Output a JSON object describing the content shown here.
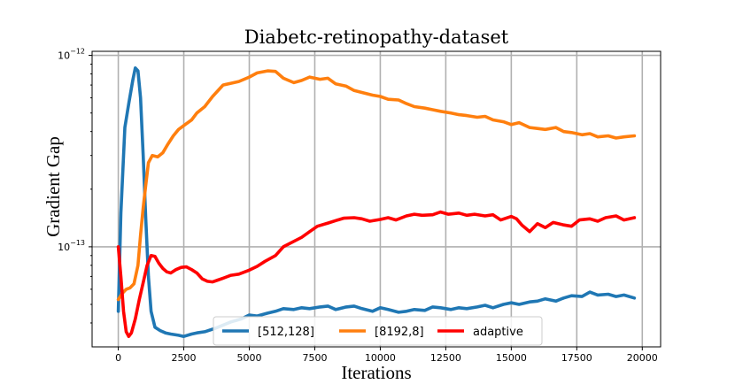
{
  "chart_data": {
    "type": "line",
    "title": "Diabetc-retinopathy-dataset",
    "xlabel": "Iterations",
    "ylabel": "Gradient Gap",
    "xlim": [
      -1000,
      20700
    ],
    "ylim": [
      3e-14,
      1.05e-12
    ],
    "yscale": "log",
    "grid": true,
    "xticks": [
      0,
      2500,
      5000,
      7500,
      10000,
      12500,
      15000,
      17500,
      20000
    ],
    "xtick_labels": [
      "0",
      "2500",
      "5000",
      "7500",
      "10000",
      "12500",
      "15000",
      "17500",
      "20000"
    ],
    "yticks": [
      {
        "value": 1e-13,
        "base": "10",
        "exp": "−13"
      },
      {
        "value": 1e-12,
        "base": "10",
        "exp": "−12"
      }
    ],
    "legend_position": "lower-center",
    "series": [
      {
        "name": "[512,128]",
        "color": "#1f77b4",
        "x": [
          0,
          100,
          250,
          400,
          550,
          650,
          750,
          850,
          950,
          1050,
          1150,
          1250,
          1400,
          1600,
          1800,
          2000,
          2300,
          2500,
          2800,
          3000,
          3300,
          3700,
          4000,
          4300,
          4700,
          5000,
          5300,
          5700,
          6000,
          6300,
          6700,
          7000,
          7300,
          7700,
          8000,
          8300,
          8700,
          9000,
          9300,
          9700,
          10000,
          10300,
          10700,
          11000,
          11300,
          11700,
          12000,
          12300,
          12700,
          13000,
          13300,
          13700,
          14000,
          14300,
          14700,
          15000,
          15300,
          15700,
          16000,
          16300,
          16700,
          17000,
          17300,
          17700,
          18000,
          18300,
          18700,
          19000,
          19300,
          19700
        ],
        "values": [
          4.6e-14,
          1.5e-13,
          4.2e-13,
          5.6e-13,
          7.4e-13,
          8.6e-13,
          8.3e-13,
          6e-13,
          3e-13,
          1.4e-13,
          7e-14,
          4.6e-14,
          3.8e-14,
          3.65e-14,
          3.55e-14,
          3.5e-14,
          3.45e-14,
          3.4e-14,
          3.5e-14,
          3.55e-14,
          3.6e-14,
          3.75e-14,
          3.9e-14,
          4.05e-14,
          4.2e-14,
          4.4e-14,
          4.35e-14,
          4.5e-14,
          4.6e-14,
          4.75e-14,
          4.7e-14,
          4.8e-14,
          4.75e-14,
          4.85e-14,
          4.9e-14,
          4.7e-14,
          4.85e-14,
          4.9e-14,
          4.75e-14,
          4.6e-14,
          4.8e-14,
          4.7e-14,
          4.55e-14,
          4.6e-14,
          4.7e-14,
          4.65e-14,
          4.85e-14,
          4.8e-14,
          4.7e-14,
          4.8e-14,
          4.75e-14,
          4.85e-14,
          4.95e-14,
          4.8e-14,
          5e-14,
          5.1e-14,
          5e-14,
          5.15e-14,
          5.2e-14,
          5.35e-14,
          5.2e-14,
          5.4e-14,
          5.55e-14,
          5.5e-14,
          5.8e-14,
          5.6e-14,
          5.65e-14,
          5.5e-14,
          5.6e-14,
          5.4e-14
        ]
      },
      {
        "name": "[8192,8]",
        "color": "#ff7f0e",
        "x": [
          0,
          150,
          300,
          450,
          600,
          750,
          850,
          950,
          1050,
          1150,
          1300,
          1500,
          1700,
          1900,
          2100,
          2300,
          2500,
          2800,
          3000,
          3300,
          3600,
          4000,
          4300,
          4600,
          5000,
          5300,
          5700,
          6000,
          6300,
          6700,
          7000,
          7300,
          7700,
          8000,
          8300,
          8700,
          9000,
          9300,
          9700,
          10000,
          10300,
          10700,
          11000,
          11300,
          11700,
          12000,
          12300,
          12700,
          13000,
          13300,
          13700,
          14000,
          14300,
          14700,
          15000,
          15300,
          15700,
          16000,
          16300,
          16700,
          17000,
          17300,
          17700,
          18000,
          18300,
          18700,
          19000,
          19300,
          19700
        ],
        "values": [
          5.3e-14,
          5.7e-14,
          6e-14,
          6.1e-14,
          6.4e-14,
          8e-14,
          1.15e-13,
          1.6e-13,
          2.1e-13,
          2.75e-13,
          3e-13,
          2.95e-13,
          3.1e-13,
          3.45e-13,
          3.8e-13,
          4.1e-13,
          4.3e-13,
          4.6e-13,
          5e-13,
          5.4e-13,
          6.1e-13,
          7e-13,
          7.15e-13,
          7.3e-13,
          7.7e-13,
          8.1e-13,
          8.3e-13,
          8.25e-13,
          7.6e-13,
          7.2e-13,
          7.4e-13,
          7.7e-13,
          7.5e-13,
          7.6e-13,
          7.1e-13,
          6.9e-13,
          6.55e-13,
          6.4e-13,
          6.2e-13,
          6.1e-13,
          5.9e-13,
          5.85e-13,
          5.6e-13,
          5.4e-13,
          5.3e-13,
          5.2e-13,
          5.1e-13,
          5e-13,
          4.9e-13,
          4.85e-13,
          4.75e-13,
          4.8e-13,
          4.6e-13,
          4.5e-13,
          4.35e-13,
          4.45e-13,
          4.2e-13,
          4.15e-13,
          4.1e-13,
          4.2e-13,
          4e-13,
          3.95e-13,
          3.85e-13,
          3.9e-13,
          3.75e-13,
          3.8e-13,
          3.7e-13,
          3.75e-13,
          3.8e-13
        ]
      },
      {
        "name": "adaptive",
        "color": "#ff0000",
        "x": [
          0,
          100,
          200,
          300,
          400,
          500,
          650,
          800,
          950,
          1100,
          1250,
          1400,
          1550,
          1700,
          1850,
          2000,
          2200,
          2400,
          2600,
          2800,
          3000,
          3200,
          3400,
          3600,
          3800,
          4000,
          4300,
          4600,
          5000,
          5300,
          5600,
          6000,
          6300,
          6600,
          7000,
          7300,
          7600,
          8000,
          8300,
          8600,
          9000,
          9300,
          9600,
          10000,
          10300,
          10600,
          11000,
          11300,
          11600,
          12000,
          12300,
          12600,
          13000,
          13300,
          13600,
          14000,
          14300,
          14600,
          15000,
          15200,
          15400,
          15700,
          16000,
          16300,
          16600,
          17000,
          17300,
          17600,
          18000,
          18300,
          18600,
          19000,
          19300,
          19700
        ],
        "values": [
          1e-13,
          7e-14,
          4.6e-14,
          3.6e-14,
          3.4e-14,
          3.55e-14,
          4.2e-14,
          5.3e-14,
          6.5e-14,
          8e-14,
          9e-14,
          8.9e-14,
          8.2e-14,
          7.7e-14,
          7.4e-14,
          7.3e-14,
          7.6e-14,
          7.8e-14,
          7.85e-14,
          7.6e-14,
          7.3e-14,
          6.8e-14,
          6.6e-14,
          6.55e-14,
          6.7e-14,
          6.85e-14,
          7.1e-14,
          7.2e-14,
          7.55e-14,
          7.9e-14,
          8.4e-14,
          9e-14,
          1e-13,
          1.05e-13,
          1.12e-13,
          1.2e-13,
          1.28e-13,
          1.33e-13,
          1.37e-13,
          1.41e-13,
          1.42e-13,
          1.4e-13,
          1.36e-13,
          1.39e-13,
          1.42e-13,
          1.38e-13,
          1.45e-13,
          1.48e-13,
          1.46e-13,
          1.47e-13,
          1.52e-13,
          1.48e-13,
          1.5e-13,
          1.46e-13,
          1.48e-13,
          1.45e-13,
          1.47e-13,
          1.38e-13,
          1.44e-13,
          1.4e-13,
          1.3e-13,
          1.2e-13,
          1.32e-13,
          1.26e-13,
          1.34e-13,
          1.3e-13,
          1.28e-13,
          1.38e-13,
          1.4e-13,
          1.36e-13,
          1.42e-13,
          1.45e-13,
          1.38e-13,
          1.42e-13
        ]
      }
    ]
  }
}
